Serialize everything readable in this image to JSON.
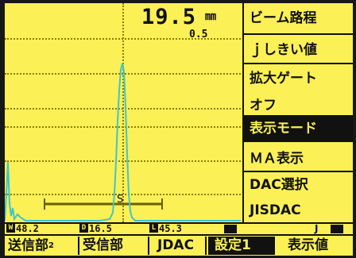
{
  "readout": {
    "value": "19.5",
    "unit": "㎜",
    "sub_value": "0.5"
  },
  "gate_marker": "S",
  "menu": {
    "items": [
      {
        "label": "ビーム路程",
        "selected": false
      },
      {
        "label": "ｊしきい値",
        "selected": false
      },
      {
        "label": "拡大ゲート",
        "selected": false
      },
      {
        "label": "オフ",
        "selected": false
      },
      {
        "label": "表示モード",
        "selected": true
      },
      {
        "label": "ＭＡ表示",
        "selected": false
      },
      {
        "label": "DAC選択",
        "selected": false
      },
      {
        "label": "JISDAC",
        "selected": false
      }
    ]
  },
  "status": {
    "cells": [
      {
        "marker": "W",
        "value": "48.2"
      },
      {
        "marker": "D",
        "value": "16.5"
      },
      {
        "marker": "L",
        "value": "45.3"
      }
    ],
    "j_label": "J"
  },
  "softkeys": [
    {
      "label": "送信部",
      "sub": "2",
      "selected": false
    },
    {
      "label": "受信部",
      "sub": "",
      "selected": false
    },
    {
      "label": "JDAC",
      "sub": "",
      "selected": false
    },
    {
      "label": "設定1",
      "sub": "",
      "selected": true
    },
    {
      "label": "表示値",
      "sub": "",
      "selected": false
    }
  ],
  "colors": {
    "screen": "#fbf055",
    "trace": "#3fc6c9",
    "ink": "#111111"
  }
}
